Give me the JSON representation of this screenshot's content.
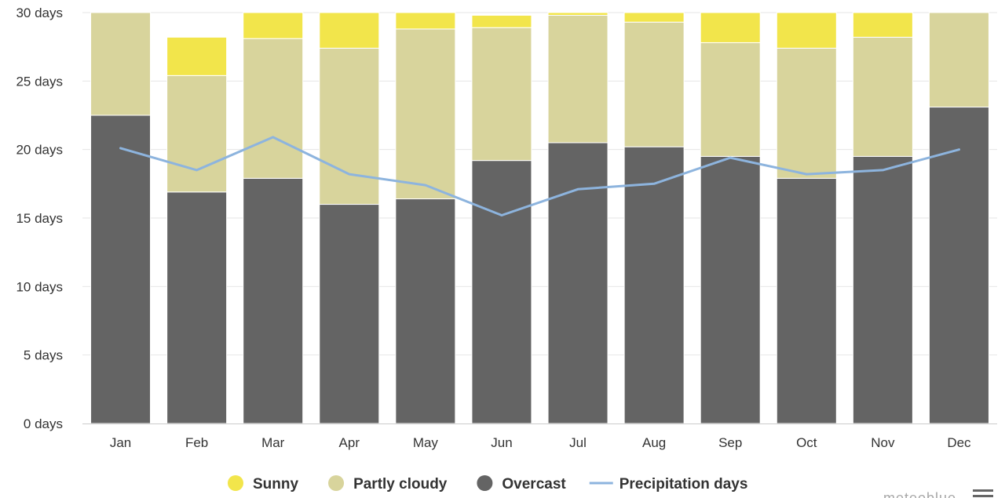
{
  "chart_data": {
    "type": "bar",
    "stacked": true,
    "categories": [
      "Jan",
      "Feb",
      "Mar",
      "Apr",
      "May",
      "Jun",
      "Jul",
      "Aug",
      "Sep",
      "Oct",
      "Nov",
      "Dec"
    ],
    "series": [
      {
        "name": "Overcast",
        "kind": "bar",
        "color": "#646464",
        "values": [
          22.5,
          16.9,
          17.9,
          16.0,
          16.4,
          19.2,
          20.5,
          20.2,
          19.5,
          17.9,
          19.5,
          23.1
        ]
      },
      {
        "name": "Partly cloudy",
        "kind": "bar",
        "color": "#d8d49c",
        "values": [
          7.5,
          8.5,
          10.2,
          11.4,
          12.4,
          9.7,
          9.3,
          9.1,
          8.3,
          9.5,
          8.7,
          6.9
        ]
      },
      {
        "name": "Sunny",
        "kind": "bar",
        "color": "#f2e54b",
        "values": [
          0.0,
          2.8,
          1.9,
          2.6,
          1.2,
          0.9,
          0.2,
          0.7,
          2.2,
          2.6,
          1.8,
          0.0
        ]
      },
      {
        "name": "Precipitation days",
        "kind": "line",
        "color": "#8db4de",
        "values": [
          20.1,
          18.5,
          20.9,
          18.2,
          17.4,
          15.2,
          17.1,
          17.5,
          19.4,
          18.2,
          18.5,
          20.0
        ]
      }
    ],
    "ylim": [
      0,
      30
    ],
    "yticks": [
      0,
      5,
      10,
      15,
      20,
      25,
      30
    ],
    "ytick_labels": [
      "0 days",
      "5 days",
      "10 days",
      "15 days",
      "20 days",
      "25 days",
      "30 days"
    ],
    "legend_order": [
      "Sunny",
      "Partly cloudy",
      "Overcast",
      "Precipitation days"
    ],
    "legend_position": "bottom",
    "grid": true,
    "gridline_color": "#e6e6e6"
  },
  "branding": {
    "text": "meteoblue",
    "menu_icon": "hamburger-menu-icon"
  }
}
